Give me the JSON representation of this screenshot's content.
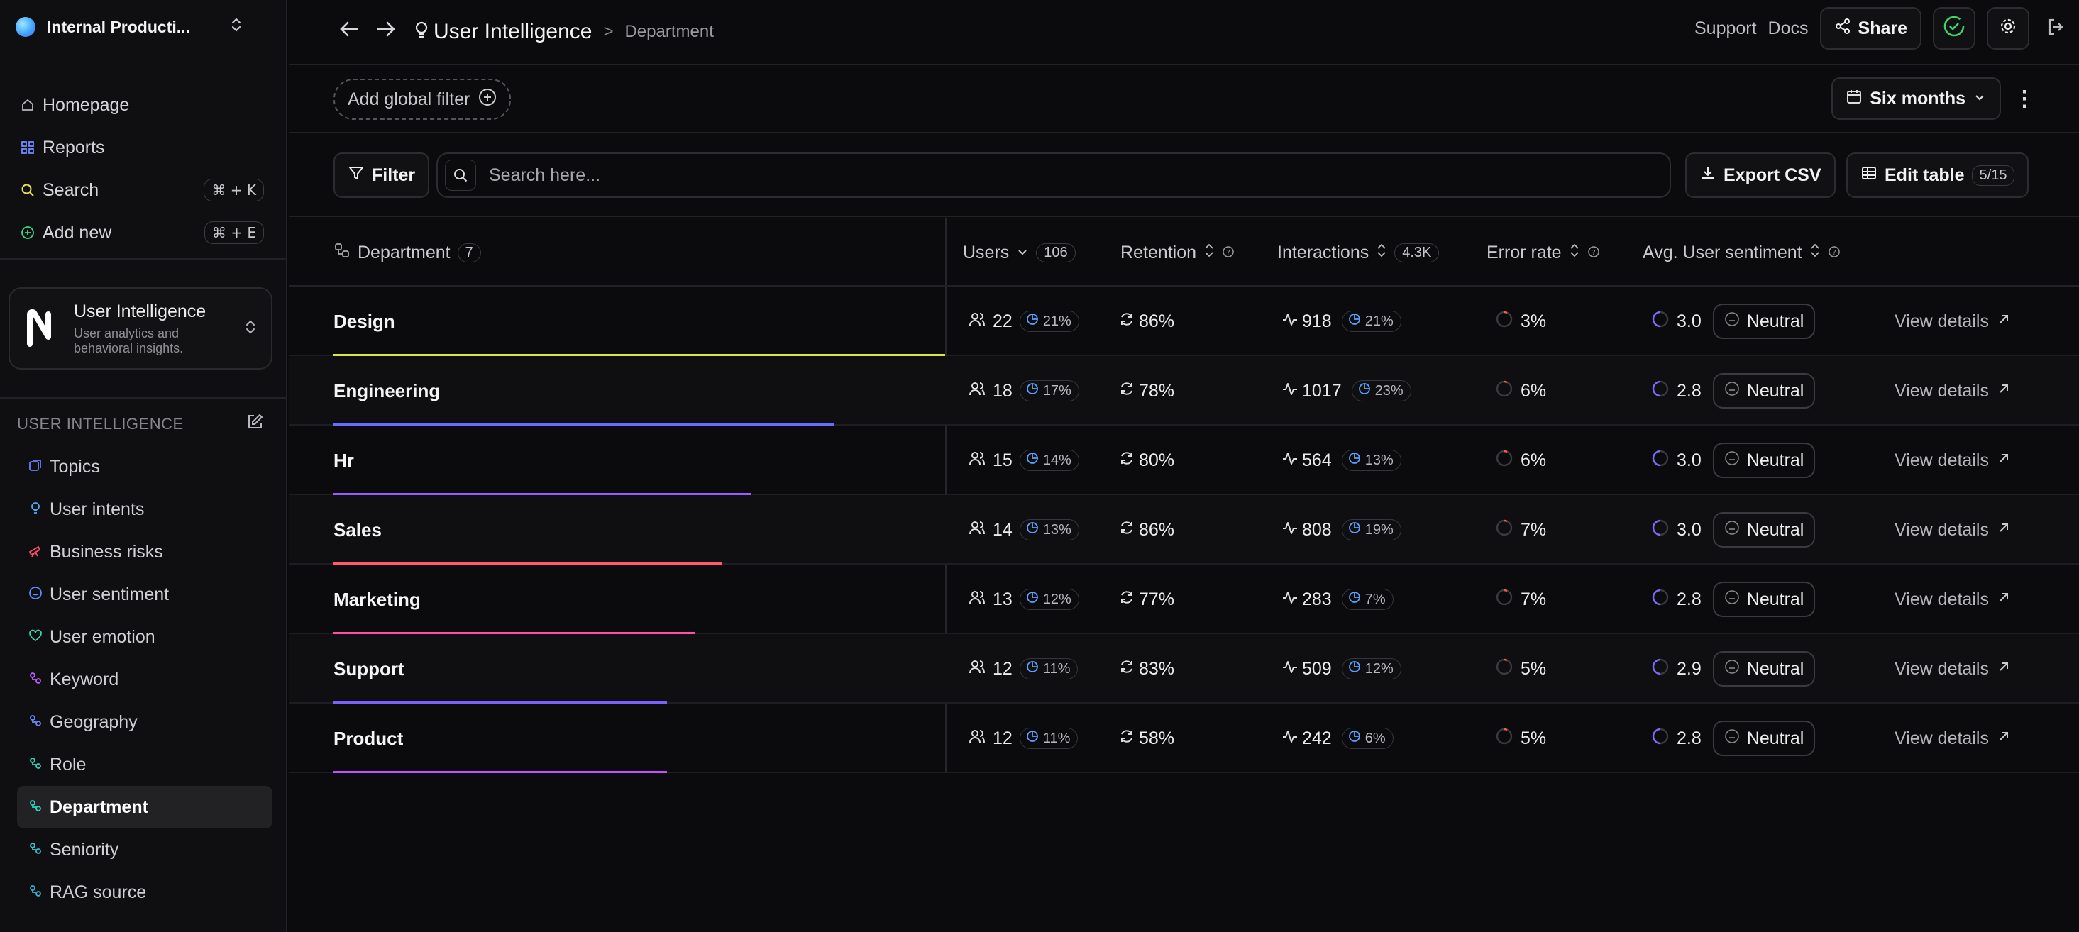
{
  "workspace": {
    "name": "Internal Producti..."
  },
  "nav": {
    "items": [
      {
        "label": "Homepage",
        "icon": "home-icon"
      },
      {
        "label": "Reports",
        "icon": "grid-icon"
      },
      {
        "label": "Search",
        "icon": "search-icon",
        "shortcut": "⌘ + K"
      },
      {
        "label": "Add new",
        "icon": "plus-circle-icon",
        "shortcut": "⌘ + E"
      }
    ]
  },
  "app_card": {
    "title": "User Intelligence",
    "subtitle_line1": "User analytics and",
    "subtitle_line2": "behavioral insights."
  },
  "section": {
    "title": "USER INTELLIGENCE"
  },
  "section_items": [
    {
      "label": "Topics",
      "color": "#6b7cff"
    },
    {
      "label": "User intents",
      "color": "#4aa8ff"
    },
    {
      "label": "Business risks",
      "color": "#ff4d6d"
    },
    {
      "label": "User sentiment",
      "color": "#5b8dff"
    },
    {
      "label": "User emotion",
      "color": "#2fd4a8"
    },
    {
      "label": "Keyword",
      "color": "#c05bff"
    },
    {
      "label": "Geography",
      "color": "#6b8cff"
    },
    {
      "label": "Role",
      "color": "#2fd4c0"
    },
    {
      "label": "Department",
      "color": "#2fd4c0",
      "active": true
    },
    {
      "label": "Seniority",
      "color": "#2fc4d4"
    },
    {
      "label": "RAG source",
      "color": "#2fb4d4"
    }
  ],
  "breadcrumb": {
    "root": "User Intelligence",
    "sep": ">",
    "current": "Department"
  },
  "topbar": {
    "support": "Support",
    "docs": "Docs",
    "share": "Share"
  },
  "filters": {
    "add_global": "Add global filter",
    "period": "Six months"
  },
  "toolbar": {
    "filter": "Filter",
    "search_placeholder": "Search here...",
    "export": "Export CSV",
    "edit_table": "Edit table",
    "edit_count": "5/15"
  },
  "columns": {
    "department": "Department",
    "department_count": "7",
    "users": "Users",
    "users_count": "106",
    "retention": "Retention",
    "interactions": "Interactions",
    "interactions_count": "4.3K",
    "error_rate": "Error rate",
    "sentiment": "Avg. User sentiment"
  },
  "rows": [
    {
      "name": "Design",
      "users": "22",
      "users_pct": "21%",
      "retention": "86%",
      "interactions": "918",
      "inter_pct": "21%",
      "error": "3%",
      "sentiment": "3.0",
      "label": "Neutral",
      "link": "View details",
      "bar_color": "#d8e64a",
      "share": 1.0
    },
    {
      "name": "Engineering",
      "users": "18",
      "users_pct": "17%",
      "retention": "78%",
      "interactions": "1017",
      "inter_pct": "23%",
      "error": "6%",
      "sentiment": "2.8",
      "label": "Neutral",
      "link": "View details",
      "bar_color": "#6a6cff",
      "share": 0.818
    },
    {
      "name": "Hr",
      "users": "15",
      "users_pct": "14%",
      "retention": "80%",
      "interactions": "564",
      "inter_pct": "13%",
      "error": "6%",
      "sentiment": "3.0",
      "label": "Neutral",
      "link": "View details",
      "bar_color": "#9b5cff",
      "share": 0.682
    },
    {
      "name": "Sales",
      "users": "14",
      "users_pct": "13%",
      "retention": "86%",
      "interactions": "808",
      "inter_pct": "19%",
      "error": "7%",
      "sentiment": "3.0",
      "label": "Neutral",
      "link": "View details",
      "bar_color": "#ff5a6e",
      "share": 0.636
    },
    {
      "name": "Marketing",
      "users": "13",
      "users_pct": "12%",
      "retention": "77%",
      "interactions": "283",
      "inter_pct": "7%",
      "error": "7%",
      "sentiment": "2.8",
      "label": "Neutral",
      "link": "View details",
      "bar_color": "#ff4fa8",
      "share": 0.591
    },
    {
      "name": "Support",
      "users": "12",
      "users_pct": "11%",
      "retention": "83%",
      "interactions": "509",
      "inter_pct": "12%",
      "error": "5%",
      "sentiment": "2.9",
      "label": "Neutral",
      "link": "View details",
      "bar_color": "#7a62ff",
      "share": 0.545
    },
    {
      "name": "Product",
      "users": "12",
      "users_pct": "11%",
      "retention": "58%",
      "interactions": "242",
      "inter_pct": "6%",
      "error": "5%",
      "sentiment": "2.8",
      "label": "Neutral",
      "link": "View details",
      "bar_color": "#c84fff",
      "share": 0.545
    }
  ]
}
